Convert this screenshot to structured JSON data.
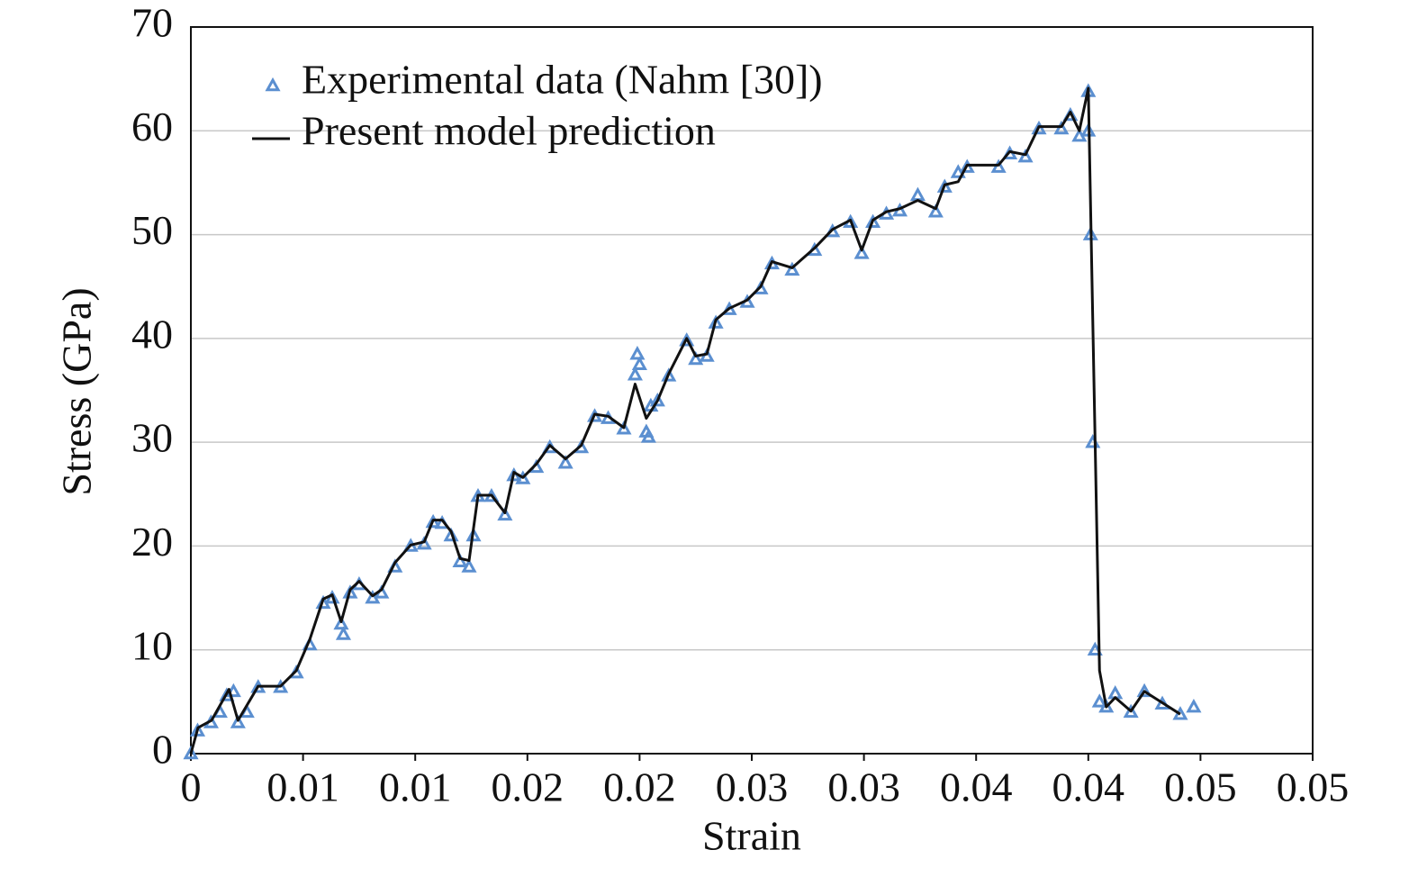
{
  "chart_data": {
    "type": "line",
    "xlabel": "Strain",
    "ylabel": "Stress (GPa)",
    "xlim": [
      0,
      0.05
    ],
    "ylim": [
      0,
      70
    ],
    "xticks": [
      0,
      {
        "value": 0.005,
        "label": "0.01"
      },
      0.01,
      {
        "value": 0.015,
        "label": "0.02"
      },
      0.02,
      {
        "value": 0.025,
        "label": "0.03"
      },
      0.03,
      {
        "value": 0.035,
        "label": "0.04"
      },
      0.04,
      {
        "value": 0.045,
        "label": "0.05"
      },
      0.05
    ],
    "yticks": [
      0,
      10,
      20,
      30,
      40,
      50,
      60,
      70
    ],
    "grid": true,
    "legend": "upper left",
    "series": [
      {
        "name": "Experimental data (Nahm [30])",
        "color": "#5b8fd0",
        "marker": "triangle",
        "x": [
          0,
          0.0003,
          0.0009,
          0.0013,
          0.0016,
          0.0019,
          0.0021,
          0.0025,
          0.003,
          0.004,
          0.0047,
          0.0053,
          0.0059,
          0.0063,
          0.0067,
          0.0068,
          0.0071,
          0.0075,
          0.0081,
          0.0085,
          0.0091,
          0.0098,
          0.0104,
          0.0108,
          0.0112,
          0.0116,
          0.012,
          0.0124,
          0.0126,
          0.0128,
          0.0134,
          0.014,
          0.0144,
          0.0148,
          0.0154,
          0.016,
          0.0167,
          0.0174,
          0.018,
          0.0186,
          0.0193,
          0.0198,
          0.0199,
          0.02,
          0.0203,
          0.0204,
          0.0205,
          0.0208,
          0.0213,
          0.0221,
          0.0225,
          0.023,
          0.0234,
          0.024,
          0.0248,
          0.0254,
          0.0259,
          0.0268,
          0.0278,
          0.0286,
          0.0294,
          0.0299,
          0.0304,
          0.031,
          0.0316,
          0.0324,
          0.0332,
          0.0336,
          0.0342,
          0.0346,
          0.036,
          0.0365,
          0.0372,
          0.0378,
          0.0388,
          0.0392,
          0.0396,
          0.04,
          0.04,
          0.0401,
          0.0402,
          0.0403,
          0.0405,
          0.0408,
          0.0412,
          0.0419,
          0.0425,
          0.0433,
          0.0441,
          0.0447
        ],
        "values": [
          0,
          2.2,
          3.0,
          4.0,
          5.6,
          6.0,
          3.0,
          4.0,
          6.4,
          6.4,
          7.8,
          10.5,
          14.5,
          15.0,
          12.5,
          11.5,
          15.5,
          16.3,
          15.0,
          15.5,
          18.0,
          20.0,
          20.2,
          22.3,
          22.2,
          21.0,
          18.5,
          18.0,
          21.0,
          24.8,
          24.8,
          23.0,
          26.8,
          26.5,
          27.6,
          29.5,
          28.0,
          29.5,
          32.5,
          32.3,
          31.3,
          36.5,
          38.5,
          37.5,
          31.0,
          30.5,
          33.5,
          34.0,
          36.4,
          39.8,
          38.0,
          38.3,
          41.5,
          42.8,
          43.5,
          44.8,
          47.2,
          46.6,
          48.5,
          50.3,
          51.2,
          48.2,
          51.2,
          52.0,
          52.3,
          53.8,
          52.2,
          54.6,
          56.0,
          56.5,
          56.5,
          57.8,
          57.5,
          60.2,
          60.2,
          61.5,
          59.5,
          63.8,
          60.0,
          50.0,
          30.0,
          10.0,
          5.0,
          4.5,
          5.8,
          4.0,
          6.0,
          4.8,
          3.8,
          4.5
        ]
      },
      {
        "name": "Present model prediction",
        "color": "#111111",
        "x": [
          0,
          0.00032,
          0.00092,
          0.0016,
          0.0017,
          0.0021,
          0.003,
          0.004,
          0.0047,
          0.0053,
          0.0059,
          0.0063,
          0.0067,
          0.0071,
          0.0075,
          0.0081,
          0.0085,
          0.0091,
          0.0098,
          0.0104,
          0.0108,
          0.0112,
          0.0116,
          0.012,
          0.0124,
          0.0128,
          0.0134,
          0.014,
          0.0144,
          0.0148,
          0.0154,
          0.016,
          0.0167,
          0.0174,
          0.018,
          0.0186,
          0.0193,
          0.0198,
          0.0203,
          0.0208,
          0.0213,
          0.0221,
          0.0225,
          0.023,
          0.0234,
          0.024,
          0.0248,
          0.0254,
          0.0259,
          0.0268,
          0.0278,
          0.0286,
          0.0294,
          0.0299,
          0.0304,
          0.031,
          0.0316,
          0.0324,
          0.0332,
          0.0336,
          0.0342,
          0.0346,
          0.036,
          0.0365,
          0.0372,
          0.0378,
          0.0388,
          0.0392,
          0.0396,
          0.04,
          0.0405,
          0.0408,
          0.0412,
          0.0419,
          0.0425,
          0.0433,
          0.0441
        ],
        "values": [
          0,
          2.5,
          3.2,
          5.8,
          6.2,
          3.2,
          6.5,
          6.5,
          8.0,
          11,
          14.9,
          15.3,
          12.7,
          15.8,
          16.6,
          15.2,
          15.8,
          18.4,
          20.1,
          20.4,
          22.5,
          22.5,
          21.4,
          18.8,
          18.6,
          24.9,
          24.9,
          23.2,
          27.1,
          26.6,
          27.9,
          29.7,
          28.4,
          29.7,
          32.7,
          32.5,
          31.4,
          35.6,
          32.3,
          34.0,
          36.6,
          40.0,
          38.3,
          38.5,
          41.8,
          42.9,
          43.7,
          45.0,
          47.4,
          46.8,
          48.7,
          50.5,
          51.4,
          48.5,
          51.4,
          52.2,
          52.5,
          53.3,
          52.5,
          54.8,
          55.1,
          56.7,
          56.7,
          58.0,
          57.7,
          60.4,
          60.4,
          61.8,
          60.0,
          64.1,
          8.0,
          4.5,
          5.4,
          4.1,
          6.0,
          4.9,
          3.8
        ]
      }
    ]
  }
}
